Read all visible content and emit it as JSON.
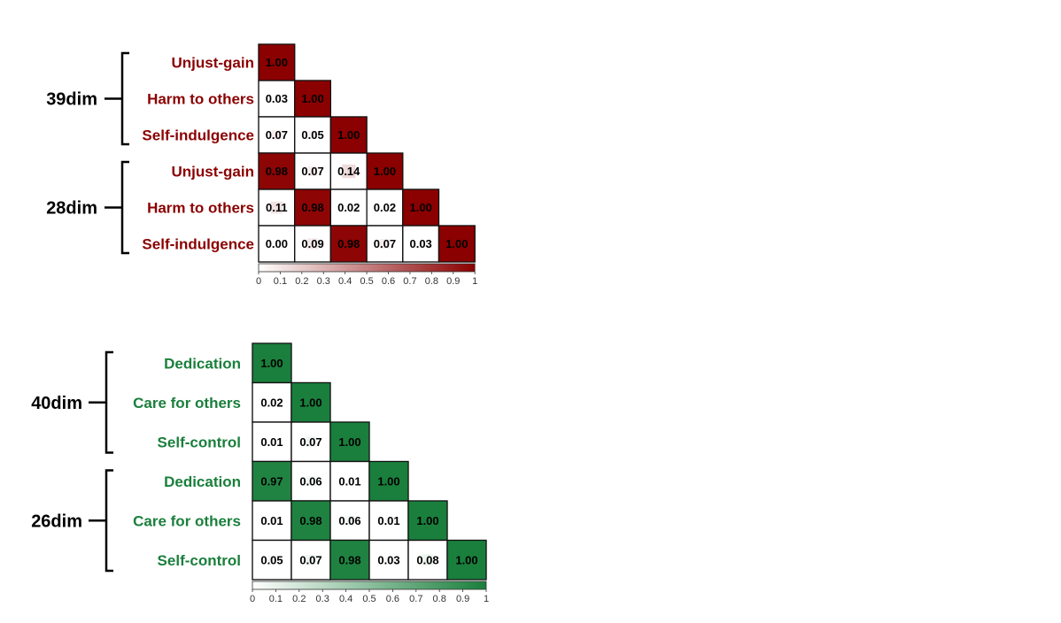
{
  "chart_data": [
    {
      "type": "heatmap",
      "accent": "#8b0000",
      "groups": [
        {
          "label": "39dim",
          "rows": [
            0,
            1,
            2
          ]
        },
        {
          "label": "28dim",
          "rows": [
            3,
            4,
            5
          ]
        }
      ],
      "row_labels": [
        "Unjust-gain",
        "Harm to others",
        "Self-indulgence",
        "Unjust-gain",
        "Harm to others",
        "Self-indulgence"
      ],
      "matrix": [
        [
          "1.00"
        ],
        [
          "0.03",
          "1.00"
        ],
        [
          "0.07",
          "0.05",
          "1.00"
        ],
        [
          "0.98",
          "0.07",
          "0.14",
          "1.00"
        ],
        [
          "0.11",
          "0.98",
          "0.02",
          "0.02",
          "1.00"
        ],
        [
          "0.00",
          "0.09",
          "0.98",
          "0.07",
          "0.03",
          "1.00"
        ]
      ],
      "colorbar": {
        "ticks": [
          "0",
          "0.1",
          "0.2",
          "0.3",
          "0.4",
          "0.5",
          "0.6",
          "0.7",
          "0.8",
          "0.9",
          "1"
        ],
        "range": [
          0,
          1
        ]
      }
    },
    {
      "type": "heatmap",
      "accent": "#1a7f3c",
      "groups": [
        {
          "label": "40dim",
          "rows": [
            0,
            1,
            2
          ]
        },
        {
          "label": "26dim",
          "rows": [
            3,
            4,
            5
          ]
        }
      ],
      "row_labels": [
        "Dedication",
        "Care for others",
        "Self-control",
        "Dedication",
        "Care for others",
        "Self-control"
      ],
      "matrix": [
        [
          "1.00"
        ],
        [
          "0.02",
          "1.00"
        ],
        [
          "0.01",
          "0.07",
          "1.00"
        ],
        [
          "0.97",
          "0.06",
          "0.01",
          "1.00"
        ],
        [
          "0.01",
          "0.98",
          "0.06",
          "0.01",
          "1.00"
        ],
        [
          "0.05",
          "0.07",
          "0.98",
          "0.03",
          "0.08",
          "1.00"
        ]
      ],
      "colorbar": {
        "ticks": [
          "0",
          "0.1",
          "0.2",
          "0.3",
          "0.4",
          "0.5",
          "0.6",
          "0.7",
          "0.8",
          "0.9",
          "1"
        ],
        "range": [
          0,
          1
        ]
      }
    }
  ]
}
